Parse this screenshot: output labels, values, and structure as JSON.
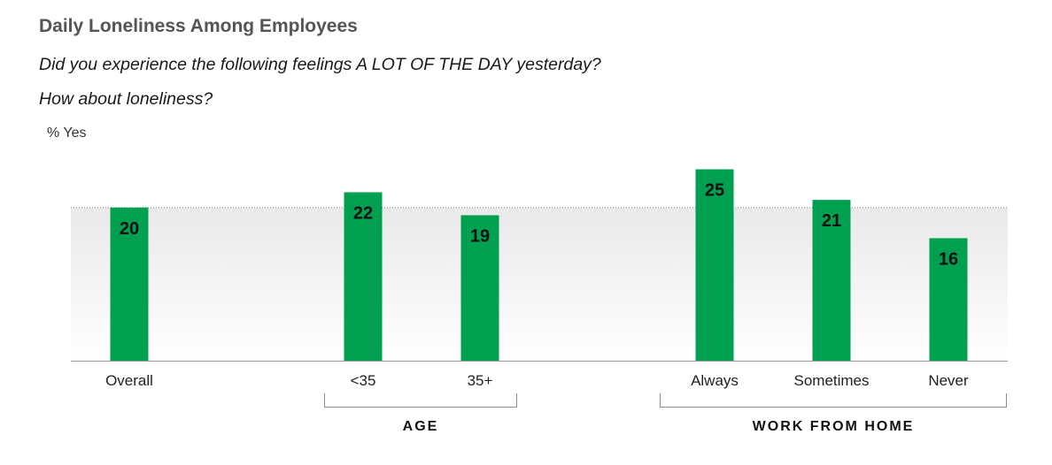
{
  "title": "Daily Loneliness Among Employees",
  "subtitle_lines": [
    "Did you experience the following feelings A LOT OF THE DAY yesterday?",
    "How about loneliness?"
  ],
  "chart_data": {
    "type": "bar",
    "ylabel": "% Yes",
    "categories": [
      "Overall",
      "<35",
      "35+",
      "Always",
      "Sometimes",
      "Never"
    ],
    "values": [
      20,
      22,
      19,
      25,
      21,
      16
    ],
    "groups": [
      {
        "label": "AGE",
        "categories": [
          "<35",
          "35+"
        ]
      },
      {
        "label": "WORK FROM HOME",
        "categories": [
          "Always",
          "Sometimes",
          "Never"
        ]
      }
    ],
    "reference_value": 20,
    "bar_color": "#00a050"
  }
}
